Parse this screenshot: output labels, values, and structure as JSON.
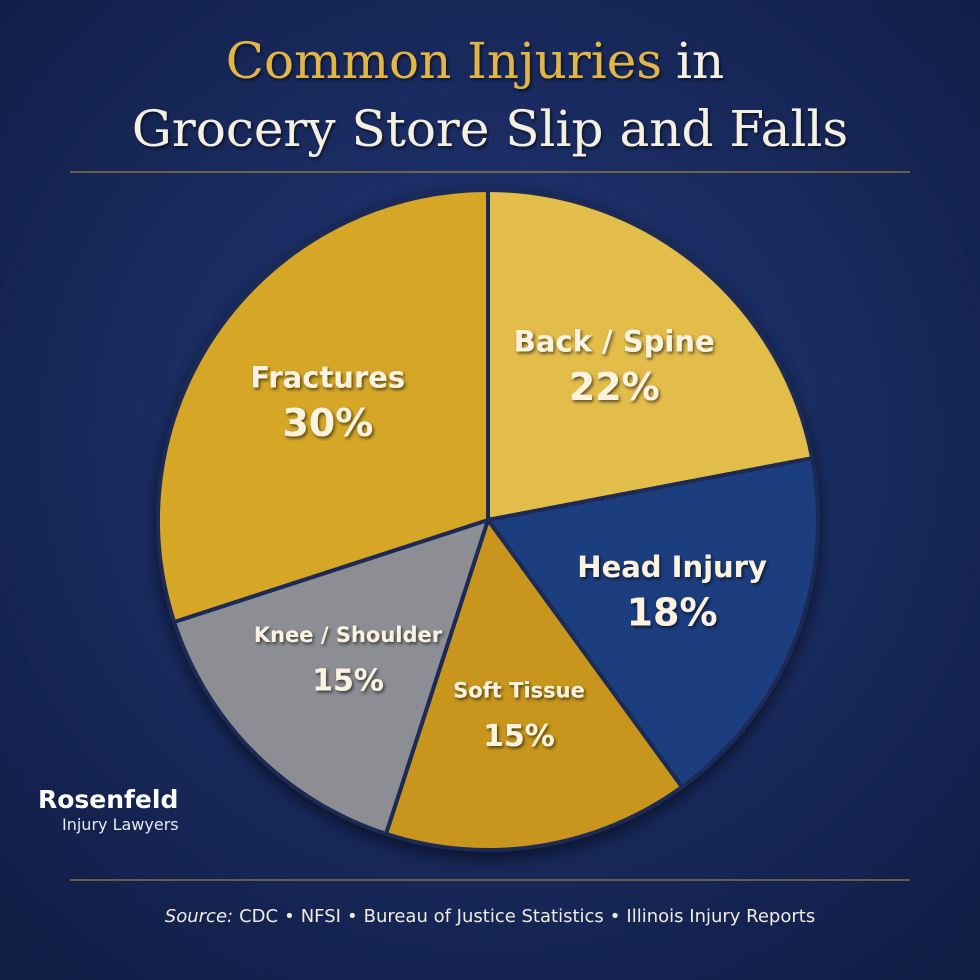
{
  "chart_data": {
    "type": "pie",
    "title_parts": [
      "Common Injuries",
      "in",
      "Grocery Store Slip and Falls"
    ],
    "categories": [
      "Back / Spine",
      "Head Injury",
      "Soft Tissue",
      "Knee / Shoulder",
      "Fractures"
    ],
    "values": [
      22,
      18,
      15,
      15,
      30
    ],
    "value_labels": [
      "22%",
      "18%",
      "15%",
      "15%",
      "30%"
    ],
    "colors": [
      "#e3bd4a",
      "#1f3c7e",
      "#c8961d",
      "#8c8e93",
      "#d6a626"
    ],
    "brand": {
      "name": "Rosenfeld",
      "tagline": "Injury Lawyers"
    },
    "source_label": "Source:",
    "sources": [
      "CDC",
      "NFSI",
      "Bureau of Justice Statistics",
      "Illinois Injury Reports"
    ]
  }
}
